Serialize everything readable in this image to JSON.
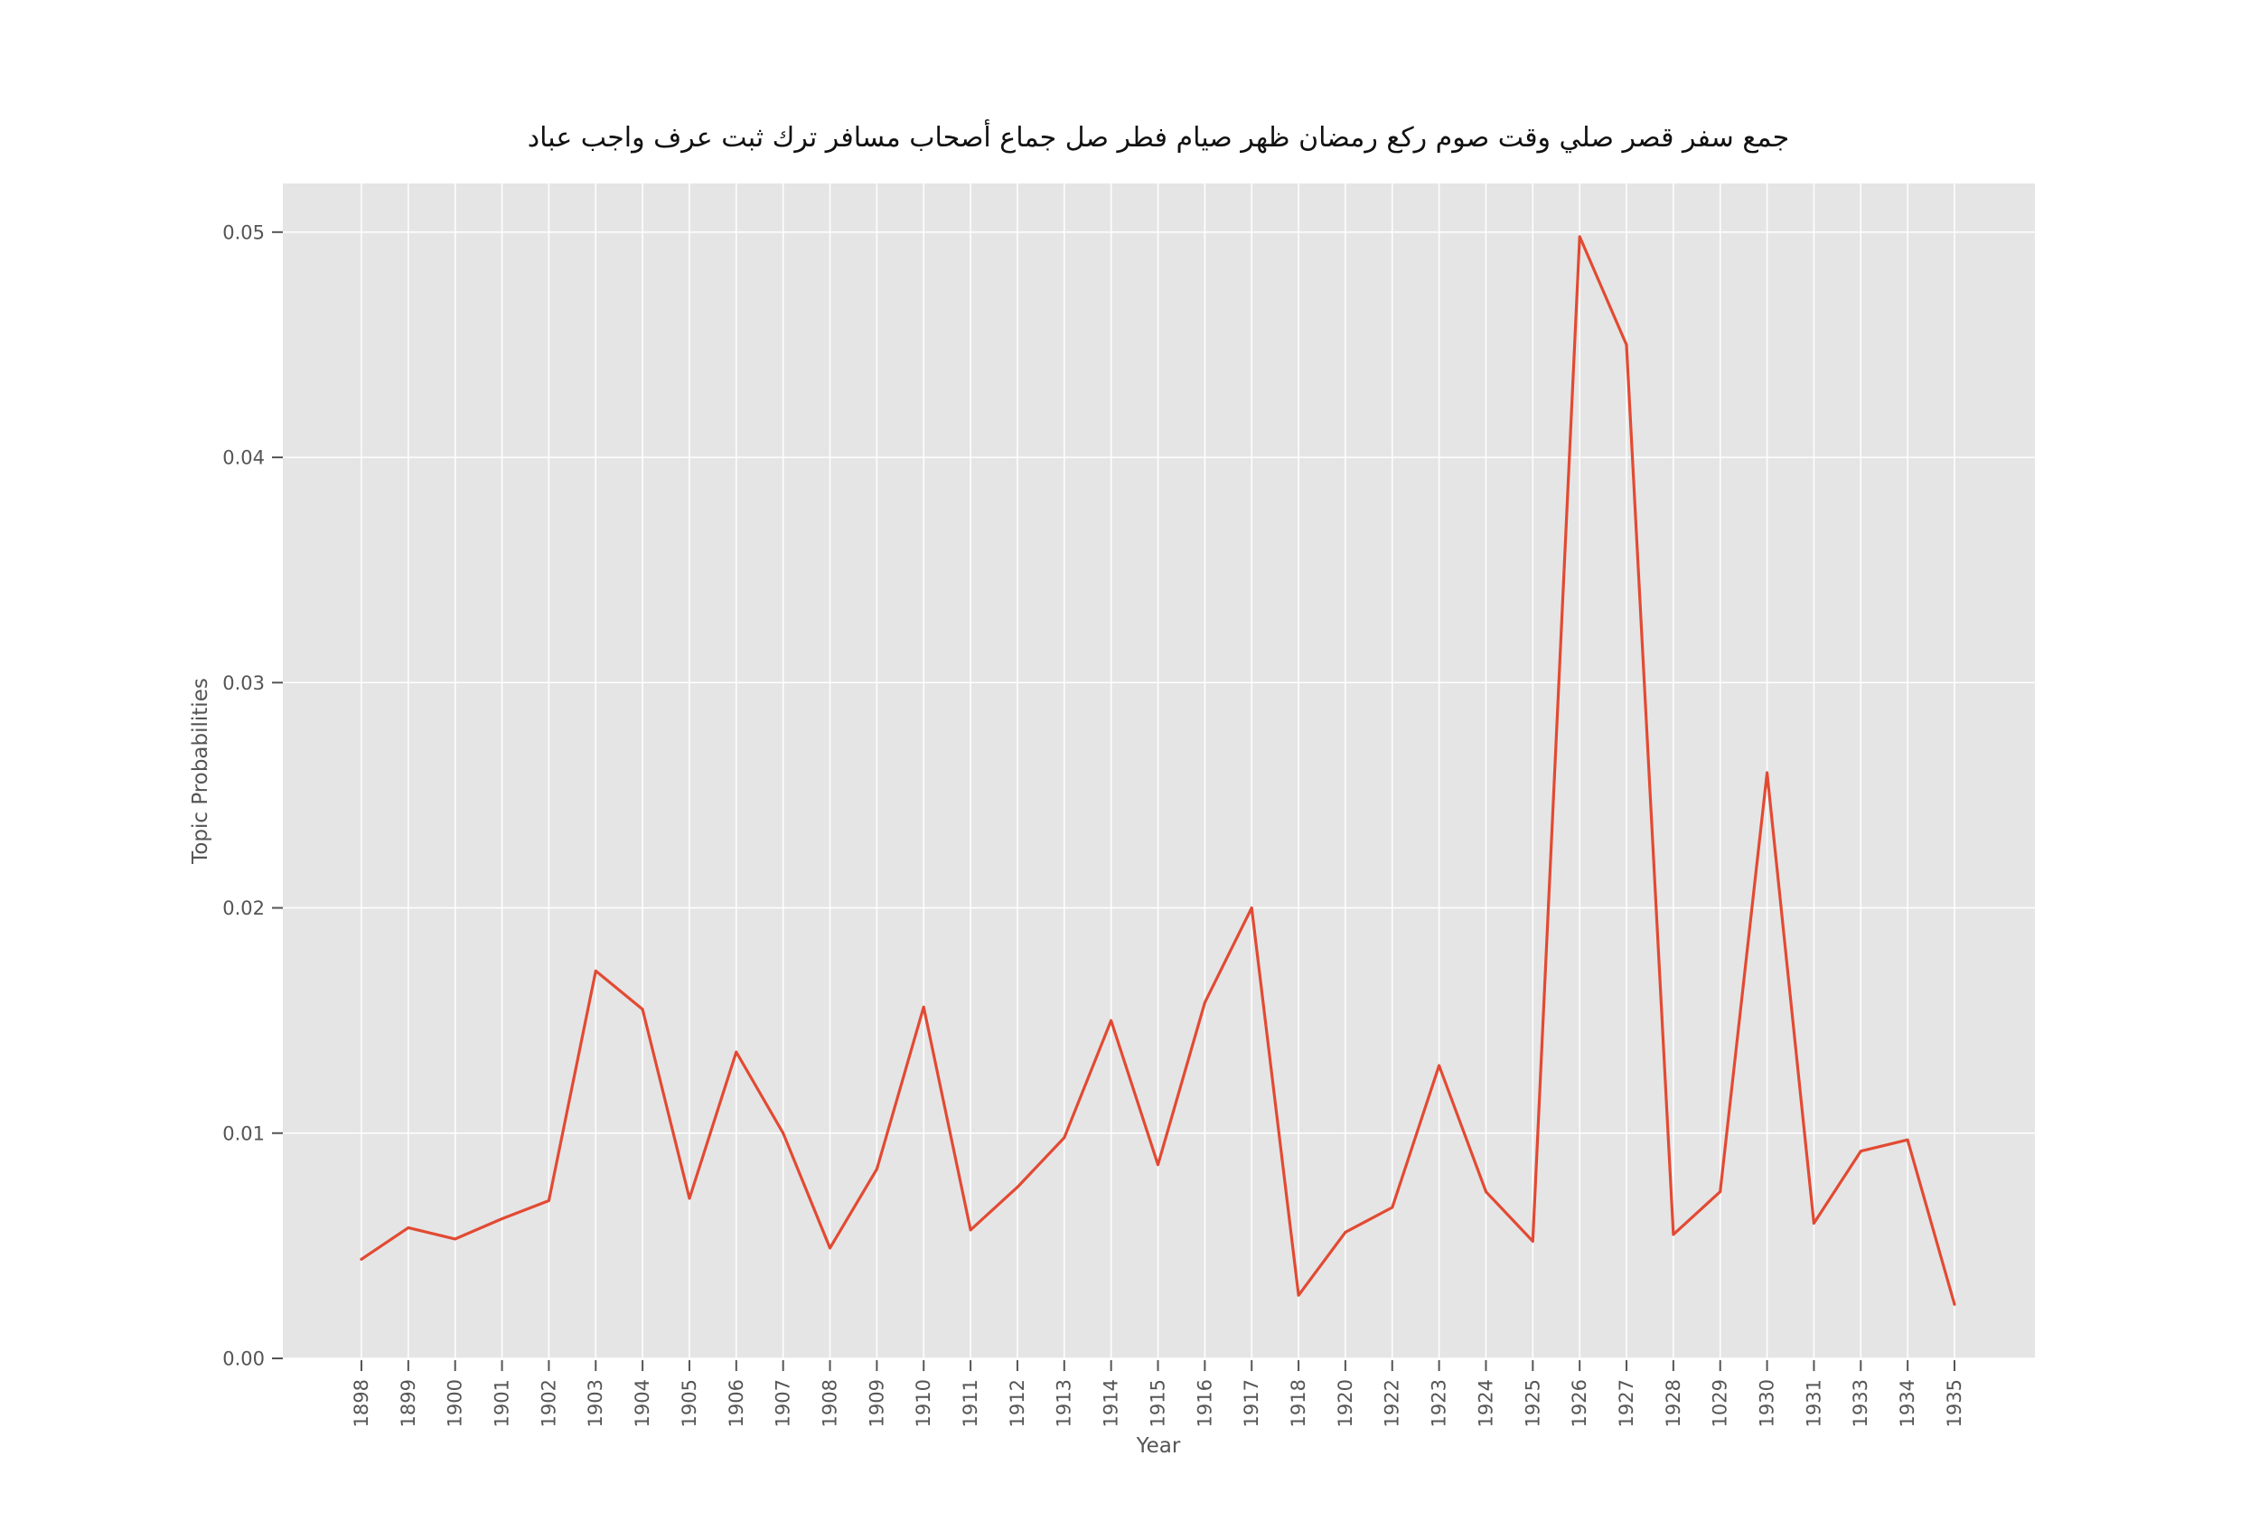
{
  "chart_data": {
    "type": "line",
    "title": "جمع سفر قصر صلي وقت صوم ركع رمضان ظهر صيام فطر صل جماع أصحاب مسافر ترك ثبت عرف واجب عباد",
    "xlabel": "Year",
    "ylabel": "Topic Probabilities",
    "categories": [
      "1898",
      "1899",
      "1900",
      "1901",
      "1902",
      "1903",
      "1904",
      "1905",
      "1906",
      "1907",
      "1908",
      "1909",
      "1910",
      "1911",
      "1912",
      "1913",
      "1914",
      "1915",
      "1916",
      "1917",
      "1918",
      "1920",
      "1922",
      "1923",
      "1924",
      "1925",
      "1926",
      "1927",
      "1928",
      "1029",
      "1930",
      "1931",
      "1933",
      "1934",
      "1935"
    ],
    "values": [
      0.0044,
      0.0058,
      0.0053,
      0.0062,
      0.007,
      0.0172,
      0.0155,
      0.0071,
      0.0136,
      0.01,
      0.0049,
      0.0084,
      0.0156,
      0.0057,
      0.0076,
      0.0098,
      0.015,
      0.0086,
      0.0158,
      0.02,
      0.0028,
      0.0056,
      0.0067,
      0.013,
      0.0074,
      0.0052,
      0.0498,
      0.045,
      0.0055,
      0.0074,
      0.026,
      0.006,
      0.0092,
      0.0097,
      0.0024
    ],
    "yticks": [
      0.0,
      0.01,
      0.02,
      0.03,
      0.04,
      0.05
    ],
    "ytick_labels": [
      "0.00",
      "0.01",
      "0.02",
      "0.03",
      "0.04",
      "0.05"
    ],
    "ylim": [
      0.0,
      0.05216
    ],
    "grid": true,
    "legend_position": "none",
    "line_color": "#E24A33",
    "panel_bg": "#E5E5E5",
    "grid_color": "#FFFFFF",
    "tick_color": "#555555",
    "tick_label_color": "#555555",
    "axis_label_color": "#555555",
    "title_color": "#111111"
  }
}
